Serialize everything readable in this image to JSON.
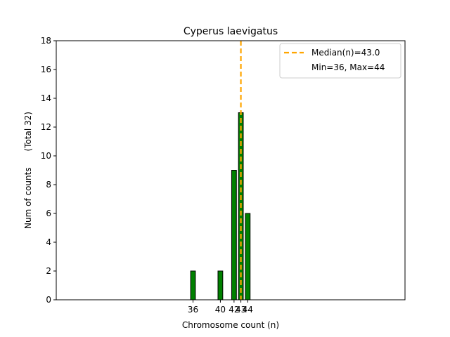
{
  "chart_data": {
    "type": "bar",
    "title": "Cyperus laevigatus",
    "xlabel": "Chromosome count (n)",
    "ylabel": "Num of counts      (Total 32)",
    "xlim": [
      16,
      67
    ],
    "ylim": [
      0,
      18
    ],
    "yticks": [
      0,
      2,
      4,
      6,
      8,
      10,
      12,
      14,
      16,
      18
    ],
    "xticks": [
      36,
      40,
      42,
      43,
      44
    ],
    "xtick_labels": [
      "36",
      "40",
      "42",
      "43",
      "44"
    ],
    "bars": [
      {
        "x": 36,
        "value": 2
      },
      {
        "x": 40,
        "value": 2
      },
      {
        "x": 42,
        "value": 9
      },
      {
        "x": 43,
        "value": 13
      },
      {
        "x": 44,
        "value": 6
      }
    ],
    "bar_color": "#008000",
    "median": 43.0,
    "median_color": "#ffa500",
    "legend": {
      "placement": "top-right",
      "entries": [
        "Median(n)=43.0",
        "Min=36, Max=44"
      ]
    },
    "grid": false
  }
}
